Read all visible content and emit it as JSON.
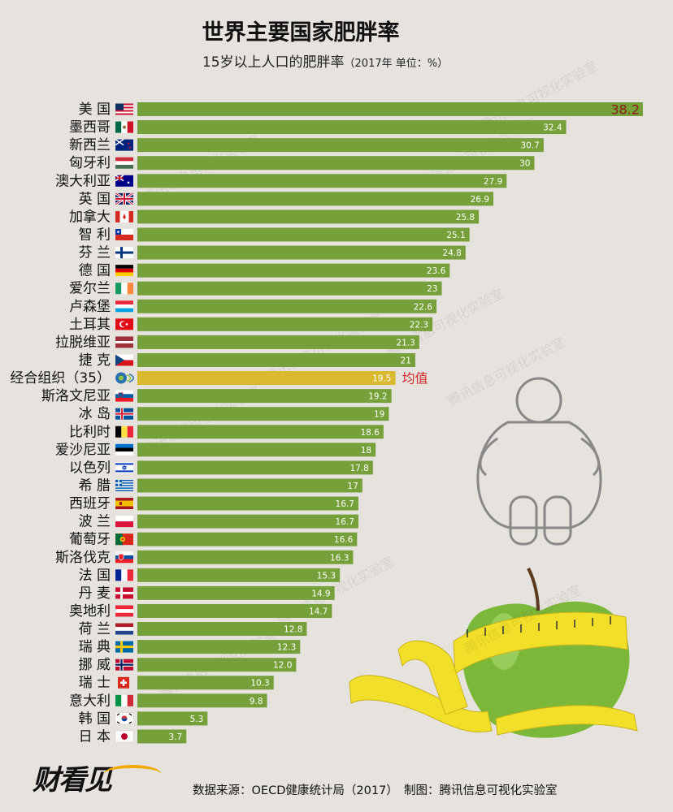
{
  "header": {
    "title": "世界主要国家肥胖率",
    "subtitle": "15岁以上人口的肥胖率",
    "unit_note": "（2017年 单位：%）"
  },
  "chart_data": {
    "type": "bar",
    "orientation": "horizontal",
    "categories": [
      "美 国",
      "墨西哥",
      "新西兰",
      "匈牙利",
      "澳大利亚",
      "英 国",
      "加拿大",
      "智 利",
      "芬 兰",
      "德 国",
      "爱尔兰",
      "卢森堡",
      "土耳其",
      "拉脱维亚",
      "捷 克",
      "经合组织（35）",
      "斯洛文尼亚",
      "冰 岛",
      "比利时",
      "爱沙尼亚",
      "以色列",
      "希 腊",
      "西班牙",
      "波 兰",
      "葡萄牙",
      "斯洛伐克",
      "法 国",
      "丹 麦",
      "奥地利",
      "荷 兰",
      "瑞 典",
      "挪 威",
      "瑞 士",
      "意大利",
      "韩 国",
      "日 本"
    ],
    "value_labels": [
      "38.2",
      "32.4",
      "30.7",
      "30",
      "27.9",
      "26.9",
      "25.8",
      "25.1",
      "24.8",
      "23.6",
      "23",
      "22.6",
      "22.3",
      "21.3",
      "21",
      "19.5",
      "19.2",
      "19",
      "18.6",
      "18",
      "17.8",
      "17",
      "16.7",
      "16.7",
      "16.6",
      "16.3",
      "15.3",
      "14.9",
      "14.7",
      "12.8",
      "12.3",
      "12.0",
      "10.3",
      "9.8",
      "5.3",
      "3.7"
    ],
    "values": [
      38.2,
      32.4,
      30.7,
      30,
      27.9,
      26.9,
      25.8,
      25.1,
      24.8,
      23.6,
      23,
      22.6,
      22.3,
      21.3,
      21,
      19.5,
      19.2,
      19,
      18.6,
      18,
      17.8,
      17,
      16.7,
      16.7,
      16.6,
      16.3,
      15.3,
      14.9,
      14.7,
      12.8,
      12.3,
      12.0,
      10.3,
      9.8,
      5.3,
      3.7
    ],
    "highlight_index": 15,
    "highlight_label": "均值",
    "colors": {
      "bar": "#76a03a",
      "highlight": "#d8b92f",
      "top_label": "#8b1a1a",
      "mean_label": "#d42a2a"
    },
    "flags": [
      "us",
      "mx",
      "nz",
      "hu",
      "au",
      "gb",
      "ca",
      "cl",
      "fi",
      "de",
      "ie",
      "lu",
      "tr",
      "lv",
      "cz",
      "oecd",
      "si",
      "is",
      "be",
      "ee",
      "il",
      "gr",
      "es",
      "pl",
      "pt",
      "sk",
      "fr",
      "dk",
      "at",
      "nl",
      "se",
      "no",
      "ch",
      "it",
      "kr",
      "jp"
    ],
    "xlim": [
      0,
      38.2
    ]
  },
  "watermark": "腾讯信息可视化实验室",
  "footer": {
    "source": "数据来源：OECD健康统计局（2017）　制图：腾讯信息可视化实验室",
    "logo": "财看见"
  }
}
